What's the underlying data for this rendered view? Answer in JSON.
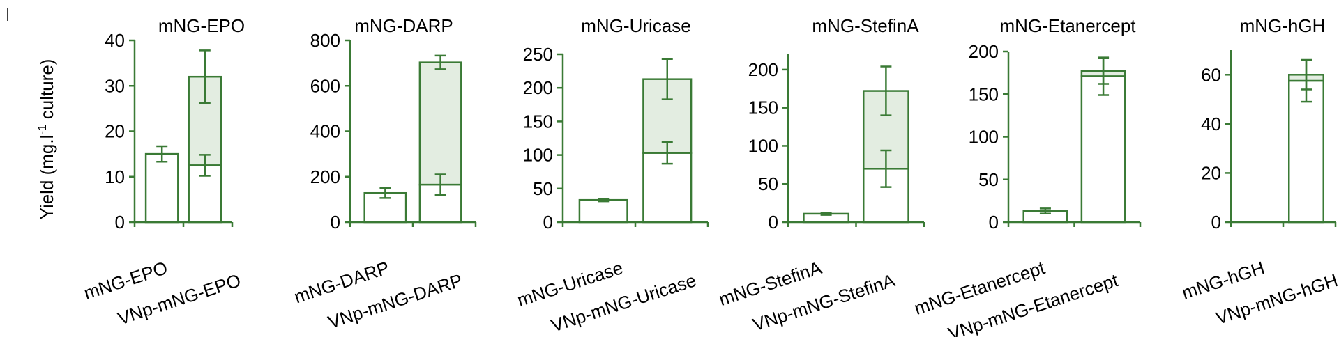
{
  "colors": {
    "axis": "#3a7a35",
    "bar_stroke": "#3a7a35",
    "shade_fill": "#e3ede1",
    "bar_fill": "#ffffff",
    "text": "#000000"
  },
  "chart_data": [
    {
      "type": "bar",
      "title": "mNG-EPO",
      "ylabel": "Yield (mg.l-1 culture)",
      "ylim": [
        0,
        40
      ],
      "yticks": [
        0,
        10,
        20,
        30,
        40
      ],
      "categories": [
        "mNG-EPO",
        "VNp-mNG-EPO"
      ],
      "bars": [
        {
          "value": 15,
          "error": 1.7
        },
        {
          "value": 12.5,
          "error": 2.3,
          "total": 32,
          "total_error": 5.8
        }
      ]
    },
    {
      "type": "bar",
      "title": "mNG-DARP",
      "ylim": [
        0,
        800
      ],
      "yticks": [
        0,
        200,
        400,
        600,
        800
      ],
      "categories": [
        "mNG-DARP",
        "VNp-mNG-DARP"
      ],
      "bars": [
        {
          "value": 128,
          "error": 22
        },
        {
          "value": 165,
          "error": 45,
          "total": 703,
          "total_error": 30
        }
      ]
    },
    {
      "type": "bar",
      "title": "mNG-Uricase",
      "ylim": [
        0,
        250
      ],
      "yticks": [
        0,
        50,
        100,
        150,
        200,
        250
      ],
      "categories": [
        "mNG-Uricase",
        "VNp-mNG-Uricase"
      ],
      "bars": [
        {
          "value": 33,
          "error": 2
        },
        {
          "value": 103,
          "error": 16,
          "total": 213,
          "total_error": 30
        }
      ]
    },
    {
      "type": "bar",
      "title": "mNG-StefinA",
      "ylim": [
        0,
        220
      ],
      "yticks": [
        0,
        50,
        100,
        150,
        200
      ],
      "categories": [
        "mNG-StefinA",
        "VNp-mNG-StefinA"
      ],
      "bars": [
        {
          "value": 11,
          "error": 1.5
        },
        {
          "value": 70,
          "error": 24,
          "total": 172,
          "total_error": 32
        }
      ]
    },
    {
      "type": "bar",
      "title": "mNG-Etanercept",
      "ylim": [
        0,
        200
      ],
      "yticks": [
        0,
        50,
        100,
        150,
        200
      ],
      "categories": [
        "mNG-Etanercept",
        "VNp-mNG-Etanercept"
      ],
      "bars": [
        {
          "value": 13,
          "error": 3
        },
        {
          "value": 171,
          "error": 22,
          "total": 177,
          "total_error": 15
        }
      ]
    },
    {
      "type": "bar",
      "title": "mNG-hGH",
      "ylim": [
        0,
        70
      ],
      "yticks": [
        0,
        20,
        40,
        60
      ],
      "categories": [
        "mNG-hGH",
        "VNp-mNG-hGH"
      ],
      "bars": [
        {
          "value": 0,
          "error": 0
        },
        {
          "value": 57.5,
          "error": 8.5,
          "total": 60,
          "total_error": 6
        }
      ]
    }
  ]
}
